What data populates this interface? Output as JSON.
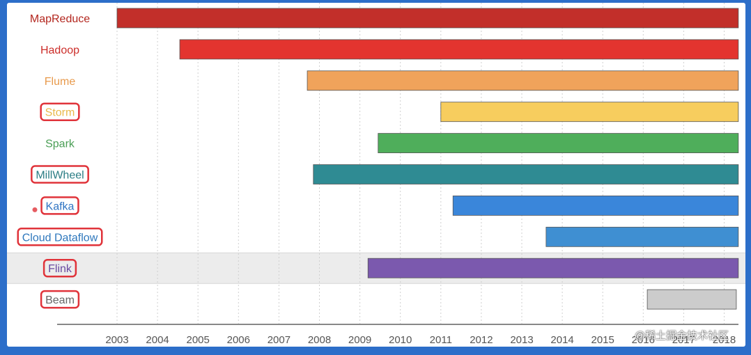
{
  "chart_data": {
    "type": "bar",
    "orientation": "horizontal",
    "subtype": "timeline",
    "x_ticks": [
      "2003",
      "2004",
      "2005",
      "2006",
      "2007",
      "2008",
      "2009",
      "2010",
      "2011",
      "2012",
      "2013",
      "2014",
      "2015",
      "2016",
      "2017",
      "2018"
    ],
    "xlim": [
      2003,
      2018.4
    ],
    "grid": "vertical-dotted",
    "series": [
      {
        "name": "MapReduce",
        "start": 2003.0,
        "end": 2018.35,
        "color": "#c22f2a",
        "text_color": "#b3261e",
        "boxed": false,
        "highlighted": false
      },
      {
        "name": "Hadoop",
        "start": 2004.55,
        "end": 2018.35,
        "color": "#e3342f",
        "text_color": "#cc2e2a",
        "boxed": false,
        "highlighted": false
      },
      {
        "name": "Flume",
        "start": 2007.7,
        "end": 2018.35,
        "color": "#f0a35b",
        "text_color": "#e89a4c",
        "boxed": false,
        "highlighted": false
      },
      {
        "name": "Storm",
        "start": 2011.0,
        "end": 2018.35,
        "color": "#f7cd5e",
        "text_color": "#e9b94a",
        "boxed": true,
        "highlighted": false
      },
      {
        "name": "Spark",
        "start": 2009.45,
        "end": 2018.35,
        "color": "#4fae5b",
        "text_color": "#4a9e55",
        "boxed": false,
        "highlighted": false
      },
      {
        "name": "MillWheel",
        "start": 2007.85,
        "end": 2018.35,
        "color": "#2f8b93",
        "text_color": "#2a7c84",
        "boxed": true,
        "highlighted": false
      },
      {
        "name": "Kafka",
        "start": 2011.3,
        "end": 2018.35,
        "color": "#3a86da",
        "text_color": "#2f74c3",
        "boxed": true,
        "highlighted": false
      },
      {
        "name": "Cloud Dataflow",
        "start": 2013.6,
        "end": 2018.35,
        "color": "#3f8fd2",
        "text_color": "#2f78bd",
        "boxed": true,
        "highlighted": false
      },
      {
        "name": "Flink",
        "start": 2009.2,
        "end": 2018.35,
        "color": "#7b59ae",
        "text_color": "#6a4aa0",
        "boxed": true,
        "highlighted": true
      },
      {
        "name": "Beam",
        "start": 2016.1,
        "end": 2018.3,
        "color": "#cccccc",
        "text_color": "#666666",
        "boxed": true,
        "highlighted": false
      }
    ]
  },
  "colors": {
    "annotation_box": "#e0333a",
    "highlight_row": "#ececec",
    "axis": "#888888",
    "grid": "#cfcfcf"
  },
  "watermark": "@稀土掘金技术社区"
}
